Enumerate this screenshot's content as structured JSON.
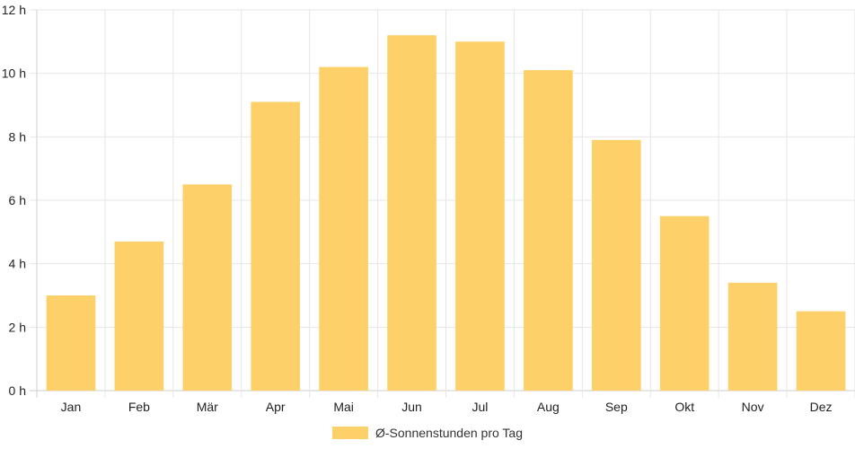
{
  "chart_data": {
    "type": "bar",
    "categories": [
      "Jan",
      "Feb",
      "Mär",
      "Apr",
      "Mai",
      "Jun",
      "Jul",
      "Aug",
      "Sep",
      "Okt",
      "Nov",
      "Dez"
    ],
    "series": [
      {
        "name": "Ø-Sonnenstunden pro Tag",
        "values": [
          3.0,
          4.7,
          6.5,
          9.1,
          10.2,
          11.2,
          11.0,
          10.1,
          7.9,
          5.5,
          3.4,
          2.5
        ]
      }
    ],
    "ylim": [
      0,
      12
    ],
    "yticks": [
      0,
      2,
      4,
      6,
      8,
      10,
      12
    ],
    "y_tick_labels": [
      "0 h",
      "2 h",
      "4 h",
      "6 h",
      "8 h",
      "10 h",
      "12 h"
    ],
    "grid": true,
    "legend_position": "bottom",
    "bar_color": "#FDD069"
  }
}
